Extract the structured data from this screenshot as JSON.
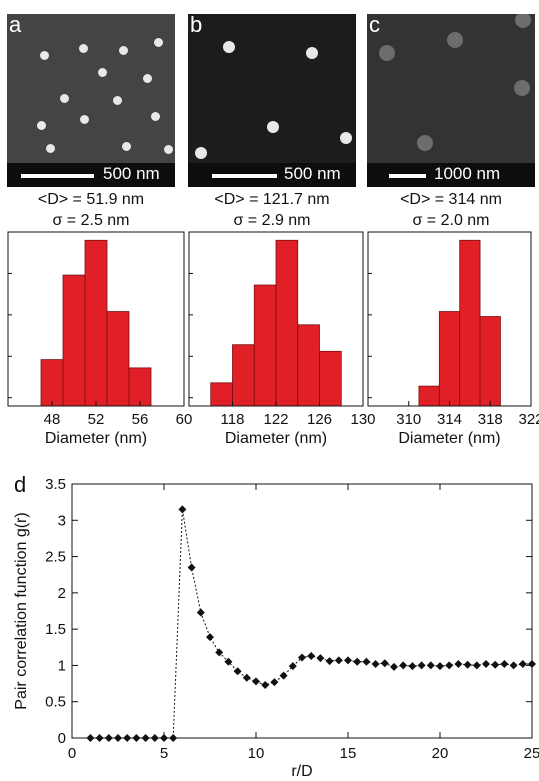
{
  "panels": [
    {
      "letter": "a",
      "scalebar": "500 nm",
      "mean": "<D> = 51.9 nm",
      "sigma": "σ = 2.5 nm"
    },
    {
      "letter": "b",
      "scalebar": "500 nm",
      "mean": "<D> = 121.7 nm",
      "sigma": "σ = 2.9 nm"
    },
    {
      "letter": "c",
      "scalebar": "1000 nm",
      "mean": "<D> = 314 nm",
      "sigma": "σ = 2.0 nm"
    }
  ],
  "colors": {
    "bar": "#e01f26",
    "bar_edge": "#7a1010",
    "sem_bg": "#2a2a2a"
  },
  "chart_data": [
    {
      "type": "bar",
      "panel": "a",
      "xlabel": "Diameter (nm)",
      "ylabel": "",
      "xlim": [
        44,
        60
      ],
      "xticks": [
        48,
        52,
        56,
        60
      ],
      "bin_width": 2,
      "bin_starts": [
        47,
        49,
        51,
        53,
        55
      ],
      "values": [
        0.28,
        0.79,
        1.0,
        0.57,
        0.23
      ],
      "ylim": [
        0,
        1.05
      ]
    },
    {
      "type": "bar",
      "panel": "b",
      "xlabel": "Diameter (nm)",
      "ylabel": "",
      "xlim": [
        114,
        130
      ],
      "xticks": [
        118,
        122,
        126,
        130
      ],
      "bin_width": 2,
      "bin_starts": [
        116,
        118,
        120,
        122,
        124,
        126
      ],
      "values": [
        0.14,
        0.37,
        0.73,
        1.0,
        0.49,
        0.33
      ],
      "ylim": [
        0,
        1.05
      ]
    },
    {
      "type": "bar",
      "panel": "c",
      "xlabel": "Diameter (nm)",
      "ylabel": "",
      "xlim": [
        306,
        322
      ],
      "xticks": [
        310,
        314,
        318,
        322
      ],
      "bin_width": 2,
      "bin_starts": [
        311,
        313,
        315,
        317
      ],
      "values": [
        0.12,
        0.57,
        1.0,
        0.54
      ],
      "ylim": [
        0,
        1.05
      ]
    },
    {
      "type": "line",
      "panel": "d",
      "xlabel": "r/D",
      "ylabel": "Pair correlation function g(r)",
      "xlim": [
        0,
        25
      ],
      "ylim": [
        0,
        3.5
      ],
      "xticks": [
        0,
        5,
        10,
        15,
        20,
        25
      ],
      "yticks": [
        0,
        0.5,
        1,
        1.5,
        2,
        2.5,
        3,
        3.5
      ],
      "series": [
        {
          "x": [
            1.0,
            1.5,
            2.0,
            2.5,
            3.0,
            3.5,
            4.0,
            4.5,
            5.0,
            5.5,
            6.0,
            6.5,
            7.0,
            7.5,
            8.0,
            8.5,
            9.0,
            9.5,
            10.0,
            10.5,
            11.0,
            11.5,
            12.0,
            12.5,
            13.0,
            13.5,
            14.0,
            14.5,
            15.0,
            15.5,
            16.0,
            16.5,
            17.0,
            17.5,
            18.0,
            18.5,
            19.0,
            19.5,
            20.0,
            20.5,
            21.0,
            21.5,
            22.0,
            22.5,
            23.0,
            23.5,
            24.0,
            24.5,
            25.0
          ],
          "y": [
            0,
            0,
            0,
            0,
            0,
            0,
            0,
            0,
            0,
            0,
            3.15,
            2.35,
            1.73,
            1.39,
            1.18,
            1.05,
            0.92,
            0.83,
            0.78,
            0.73,
            0.77,
            0.86,
            0.99,
            1.11,
            1.13,
            1.1,
            1.06,
            1.07,
            1.07,
            1.05,
            1.05,
            1.02,
            1.03,
            0.98,
            1.0,
            0.99,
            1.0,
            1.0,
            0.99,
            1.0,
            1.02,
            1.01,
            1.0,
            1.02,
            1.01,
            1.02,
            1.0,
            1.02,
            1.02
          ]
        }
      ]
    }
  ]
}
